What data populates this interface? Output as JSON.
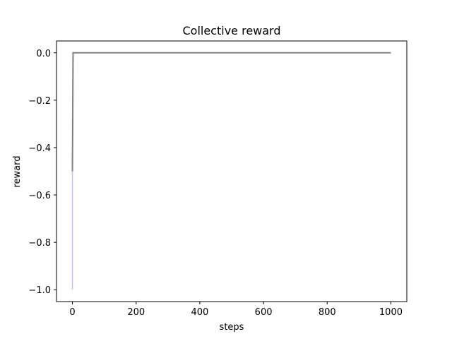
{
  "chart_data": {
    "type": "line",
    "title": "Collective reward",
    "xlabel": "steps",
    "ylabel": "reward",
    "xlim": [
      -50,
      1050
    ],
    "ylim": [
      -1.05,
      0.05
    ],
    "grid": false,
    "x_ticks": [
      0,
      200,
      400,
      600,
      800,
      1000
    ],
    "x_tick_labels": [
      "0",
      "200",
      "400",
      "600",
      "800",
      "1000"
    ],
    "y_ticks": [
      0.0,
      -0.2,
      -0.4,
      -0.6,
      -0.8,
      -1.0
    ],
    "y_tick_labels": [
      "0.0",
      "−0.2",
      "−0.4",
      "−0.6",
      "−0.8",
      "−1.0"
    ],
    "series": [
      {
        "color": "#0000ff",
        "opacity": 0.25,
        "x": [
          0,
          0,
          2,
          1000
        ],
        "y": [
          -1.0,
          -0.5,
          0.0,
          0.0
        ]
      },
      {
        "color": "#808080",
        "opacity": 1.0,
        "x": [
          0,
          0,
          2,
          1000
        ],
        "y": [
          -0.5,
          -0.5,
          0.0,
          0.0
        ]
      }
    ]
  }
}
